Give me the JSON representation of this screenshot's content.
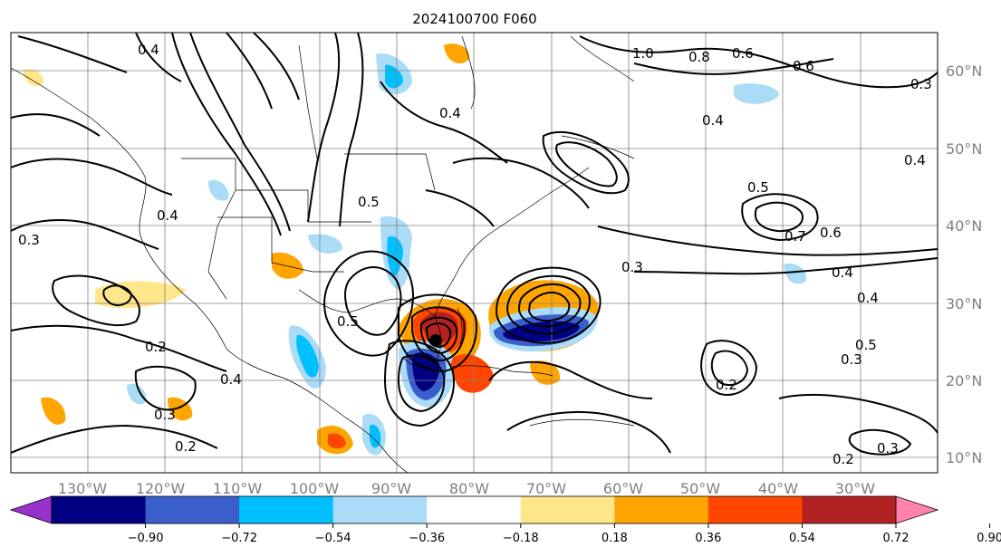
{
  "title": "2024100700 F060",
  "map": {
    "lon_labels": [
      "130°W",
      "120°W",
      "110°W",
      "100°W",
      "90°W",
      "80°W",
      "70°W",
      "60°W",
      "50°W",
      "40°W",
      "30°W"
    ],
    "lat_labels": [
      "60°N",
      "50°N",
      "40°N",
      "30°N",
      "20°N",
      "10°N"
    ],
    "contour_labels": [
      "0.4",
      "1.0",
      "0.8",
      "0.6",
      "0.4",
      "0.5",
      "0.7",
      "0.6",
      "0.4",
      "0.5",
      "0.3",
      "0.2",
      "0.4",
      "0.3",
      "0.2",
      "0.2",
      "0.3",
      "0.5",
      "0.3",
      "0.4",
      "0.3",
      "0.6",
      "0.5",
      "0.4",
      "0.2",
      "0.4",
      "0.3",
      "0.4"
    ],
    "storm_center_marker": "filled-circle"
  },
  "colorbar": {
    "ticks": [
      "−0.90",
      "−0.72",
      "−0.54",
      "−0.36",
      "−0.18",
      "0.18",
      "0.36",
      "0.54",
      "0.72",
      "0.90"
    ],
    "colors": [
      "#9932cc",
      "#000080",
      "#3a5fcd",
      "#00bfff",
      "#aadcf8",
      "#ffffff",
      "#ffe68a",
      "#ffa500",
      "#ff4500",
      "#b22222",
      "#ff82ab"
    ]
  }
}
